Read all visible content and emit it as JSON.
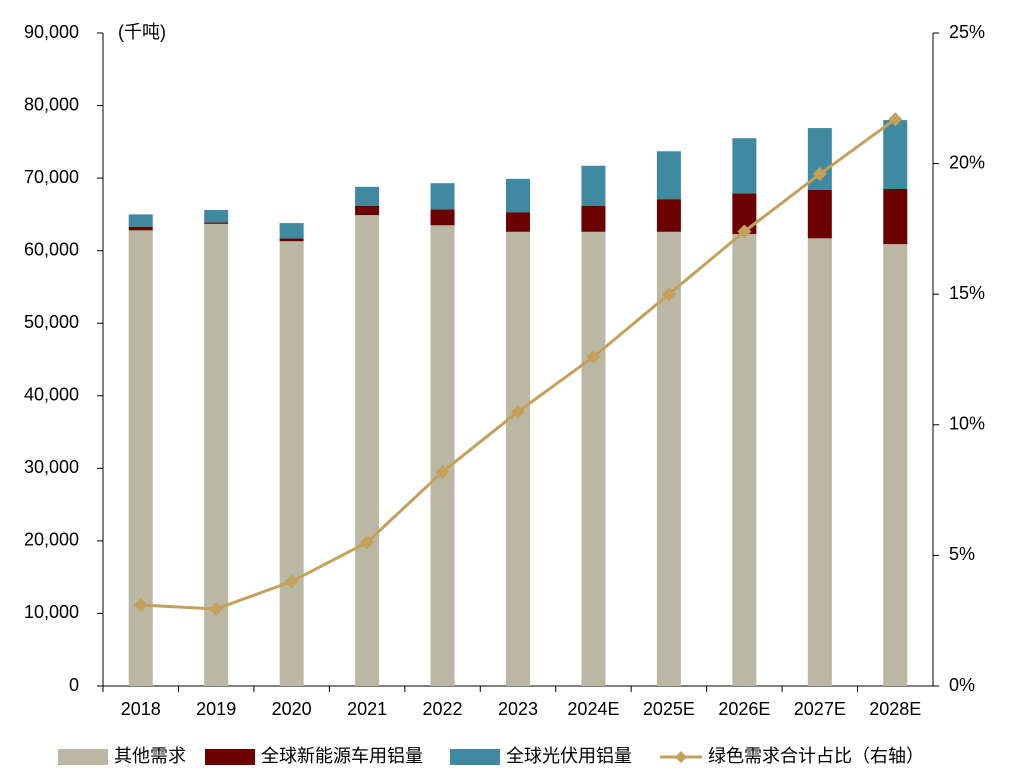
{
  "chart_data": {
    "type": "bar",
    "stacked": true,
    "y_unit_label": "(千吨)",
    "categories": [
      "2018",
      "2019",
      "2020",
      "2021",
      "2022",
      "2023",
      "2024E",
      "2025E",
      "2026E",
      "2027E",
      "2028E"
    ],
    "series": [
      {
        "name": "其他需求",
        "color": "#bab8a5",
        "values": [
          62800,
          63700,
          61300,
          64900,
          63500,
          62600,
          62600,
          62600,
          62300,
          61700,
          60900
        ]
      },
      {
        "name": "全球新能源车用铝量",
        "color": "#6b0000",
        "values": [
          500,
          200,
          400,
          1300,
          2200,
          2700,
          3600,
          4500,
          5600,
          6700,
          7600
        ]
      },
      {
        "name": "全球光伏用铝量",
        "color": "#3f8aa0",
        "values": [
          1700,
          1700,
          2100,
          2600,
          3600,
          4600,
          5500,
          6600,
          7600,
          8500,
          9500
        ]
      },
      {
        "name": "绿色需求合计占比（右轴）",
        "color": "#c4a15a",
        "type": "line",
        "axis": "y2",
        "values": [
          3.1,
          2.95,
          4.0,
          5.5,
          8.2,
          10.5,
          12.6,
          15.0,
          17.4,
          19.6,
          21.7
        ]
      }
    ],
    "ylim": [
      0,
      90000
    ],
    "yticks": [
      0,
      {
        "value": 10000,
        "label": "10,000"
      },
      {
        "value": 20000,
        "label": "20,000"
      },
      {
        "value": 30000,
        "label": "30,000"
      },
      {
        "value": 40000,
        "label": "40,000"
      },
      {
        "value": 50000,
        "label": "50,000"
      },
      {
        "value": 60000,
        "label": "60,000"
      },
      {
        "value": 70000,
        "label": "70,000"
      },
      {
        "value": 80000,
        "label": "80,000"
      },
      {
        "value": 90000,
        "label": "90,000"
      }
    ],
    "y2lim": [
      0,
      25
    ],
    "y2ticks": [
      {
        "value": 0,
        "label": "0%"
      },
      {
        "value": 5,
        "label": "5%"
      },
      {
        "value": 10,
        "label": "10%"
      },
      {
        "value": 15,
        "label": "15%"
      },
      {
        "value": 20,
        "label": "20%"
      },
      {
        "value": 25,
        "label": "25%"
      }
    ],
    "grid": false,
    "legend": "bottom"
  }
}
